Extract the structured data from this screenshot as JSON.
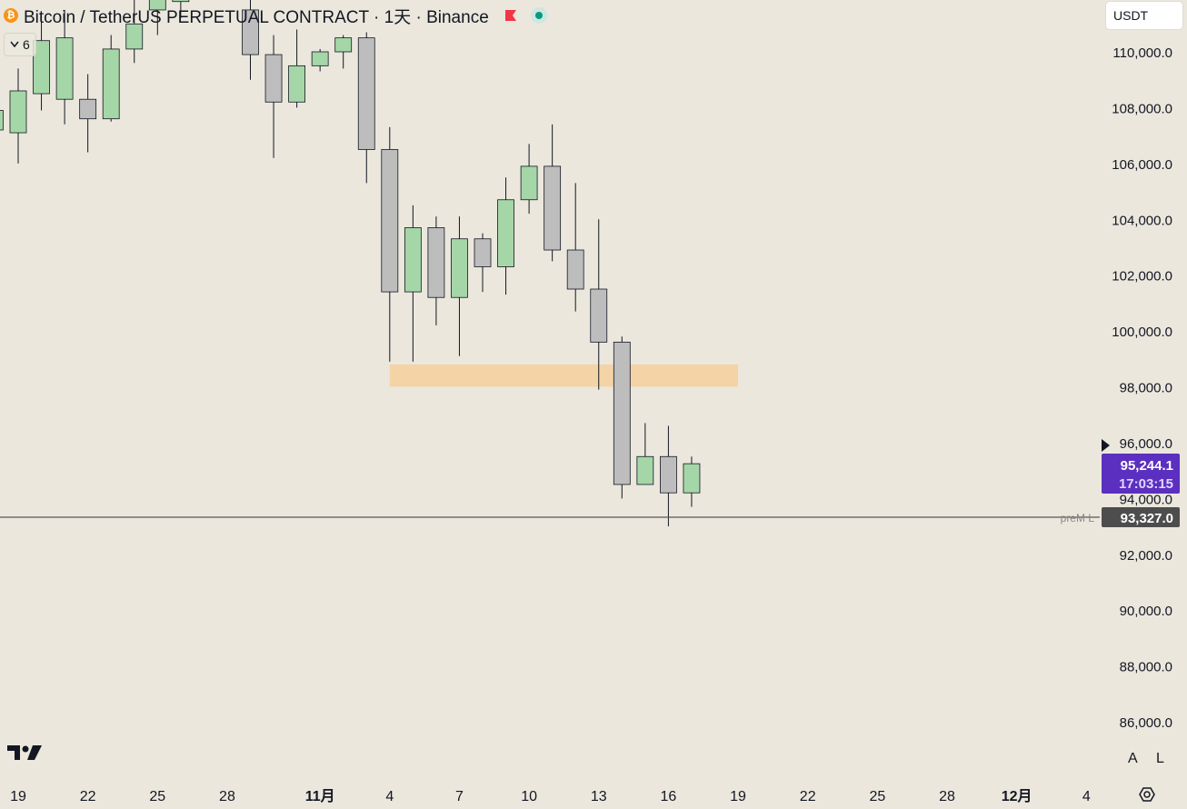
{
  "header": {
    "symbol_title": "Bitcoin / TetherUS PERPETUAL CONTRACT · 1天 · Binance",
    "coin_icon": "bitcoin-icon",
    "coin_glyph": "₿"
  },
  "indicator_badge": {
    "count": "6"
  },
  "currency_select": {
    "value": "USDT"
  },
  "scale_buttons": {
    "auto": "A",
    "log": "L"
  },
  "colors": {
    "background": "#ebe7dd",
    "up_body": "#a5d6a7",
    "down_body": "#bdbdbd",
    "outline": "#131722",
    "zone": "#f5d0a0",
    "price_label": "#5b2fbf",
    "line_label": "#4d4d4d"
  },
  "chart_data": {
    "type": "candlestick",
    "ylim": [
      84000,
      112000
    ],
    "y_ticks": [
      "110,000.0",
      "108,000.0",
      "106,000.0",
      "104,000.0",
      "102,000.0",
      "100,000.0",
      "98,000.0",
      "96,000.0",
      "94,000.0",
      "92,000.0",
      "90,000.0",
      "88,000.0",
      "86,000.0"
    ],
    "y_tick_values": [
      110000,
      108000,
      106000,
      104000,
      102000,
      100000,
      98000,
      96000,
      94000,
      92000,
      90000,
      88000,
      86000
    ],
    "x_ticks": [
      {
        "label": "19",
        "day": 0
      },
      {
        "label": "22",
        "day": 3
      },
      {
        "label": "25",
        "day": 6
      },
      {
        "label": "28",
        "day": 9
      },
      {
        "label": "11月",
        "day": 13,
        "bold": true
      },
      {
        "label": "4",
        "day": 16
      },
      {
        "label": "7",
        "day": 19
      },
      {
        "label": "10",
        "day": 22
      },
      {
        "label": "13",
        "day": 25
      },
      {
        "label": "16",
        "day": 28
      },
      {
        "label": "19",
        "day": 31
      },
      {
        "label": "22",
        "day": 34
      },
      {
        "label": "25",
        "day": 37
      },
      {
        "label": "28",
        "day": 40
      },
      {
        "label": "12月",
        "day": 43,
        "bold": true
      },
      {
        "label": "4",
        "day": 46
      }
    ],
    "candles": [
      {
        "day": -1,
        "o": 107200,
        "h": 108200,
        "l": 106300,
        "c": 107900
      },
      {
        "day": 0,
        "o": 107100,
        "h": 109400,
        "l": 106000,
        "c": 108600
      },
      {
        "day": 1,
        "o": 108500,
        "h": 111300,
        "l": 107900,
        "c": 110400
      },
      {
        "day": 2,
        "o": 108300,
        "h": 111500,
        "l": 107400,
        "c": 110500
      },
      {
        "day": 3,
        "o": 108300,
        "h": 109200,
        "l": 106400,
        "c": 107600
      },
      {
        "day": 4,
        "o": 107600,
        "h": 110600,
        "l": 107500,
        "c": 110100
      },
      {
        "day": 5,
        "o": 110100,
        "h": 112200,
        "l": 109600,
        "c": 111000
      },
      {
        "day": 6,
        "o": 111500,
        "h": 112500,
        "l": 110600,
        "c": 112000
      },
      {
        "day": 7,
        "o": 111800,
        "h": 112500,
        "l": 111200,
        "c": 112200
      },
      {
        "day": 10,
        "o": 111500,
        "h": 112000,
        "l": 109000,
        "c": 109900
      },
      {
        "day": 11,
        "o": 109900,
        "h": 110600,
        "l": 106200,
        "c": 108200
      },
      {
        "day": 12,
        "o": 108200,
        "h": 110800,
        "l": 108000,
        "c": 109500
      },
      {
        "day": 13,
        "o": 109500,
        "h": 110100,
        "l": 109300,
        "c": 110000
      },
      {
        "day": 14,
        "o": 110000,
        "h": 110600,
        "l": 109400,
        "c": 110500
      },
      {
        "day": 15,
        "o": 110500,
        "h": 110700,
        "l": 105300,
        "c": 106500
      },
      {
        "day": 16,
        "o": 106500,
        "h": 107300,
        "l": 98900,
        "c": 101400
      },
      {
        "day": 17,
        "o": 101400,
        "h": 104500,
        "l": 98900,
        "c": 103700
      },
      {
        "day": 18,
        "o": 103700,
        "h": 104100,
        "l": 100200,
        "c": 101200
      },
      {
        "day": 19,
        "o": 101200,
        "h": 104100,
        "l": 99100,
        "c": 103300
      },
      {
        "day": 20,
        "o": 103300,
        "h": 103500,
        "l": 101400,
        "c": 102300
      },
      {
        "day": 21,
        "o": 102300,
        "h": 105500,
        "l": 101300,
        "c": 104700
      },
      {
        "day": 22,
        "o": 104700,
        "h": 106700,
        "l": 104200,
        "c": 105900
      },
      {
        "day": 23,
        "o": 105900,
        "h": 107400,
        "l": 102500,
        "c": 102900
      },
      {
        "day": 24,
        "o": 102900,
        "h": 105300,
        "l": 100700,
        "c": 101500
      },
      {
        "day": 25,
        "o": 101500,
        "h": 104000,
        "l": 97900,
        "c": 99600
      },
      {
        "day": 26,
        "o": 99600,
        "h": 99800,
        "l": 94000,
        "c": 94500
      },
      {
        "day": 27,
        "o": 94500,
        "h": 96700,
        "l": 94500,
        "c": 95500
      },
      {
        "day": 28,
        "o": 95500,
        "h": 96600,
        "l": 93000,
        "c": 94200
      },
      {
        "day": 29,
        "o": 94200,
        "h": 95500,
        "l": 93700,
        "c": 95244.1
      }
    ],
    "zone": {
      "from_day": 16,
      "to_day": 31,
      "low": 98000,
      "high": 98800
    },
    "hline": {
      "value": 93327,
      "name": "preM L",
      "label": "93,327.0"
    },
    "last_price": {
      "value": 95244.1,
      "label": "95,244.1",
      "countdown": "17:03:15"
    }
  }
}
